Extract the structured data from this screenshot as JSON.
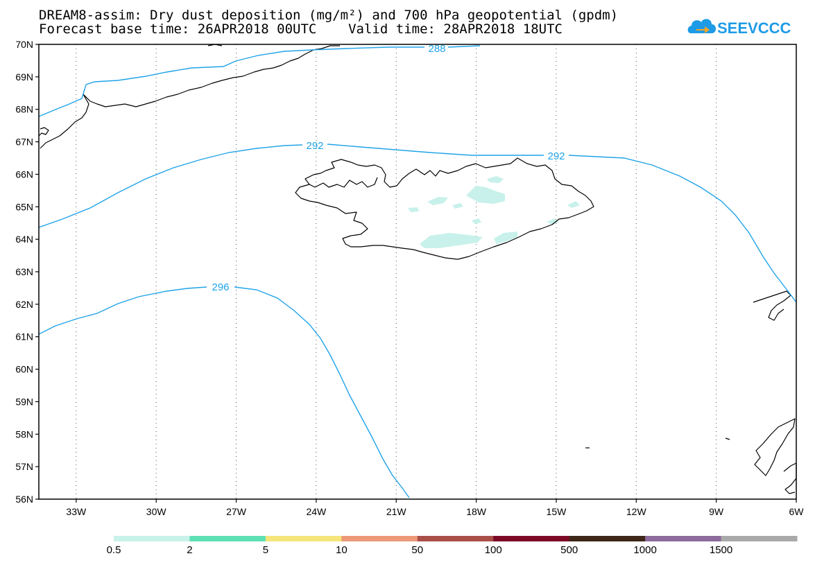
{
  "title": {
    "line1": "DREAM8-assim: Dry dust deposition (mg/m²) and 700 hPa geopotential (gpdm)",
    "line2": "Forecast base time: 26APR2018 00UTC    Valid time: 28APR2018 18UTC"
  },
  "logo": {
    "text": "SEEVCCC",
    "color": "#1e9be6",
    "accent": "#f5a623",
    "icon": "cloud-arrow-icon"
  },
  "map": {
    "lat_labels": [
      "70N",
      "69N",
      "68N",
      "67N",
      "66N",
      "65N",
      "64N",
      "63N",
      "62N",
      "61N",
      "60N",
      "59N",
      "58N",
      "57N",
      "56N"
    ],
    "lon_labels": [
      "33W",
      "30W",
      "27W",
      "24W",
      "21W",
      "18W",
      "15W",
      "12W",
      "9W",
      "6W"
    ],
    "lat_range": [
      56,
      70
    ],
    "lon_range": [
      -34.4,
      -6
    ],
    "grid": "dotted",
    "coastline_color": "#000000",
    "contour_color": "#1fa3e8",
    "contours": [
      {
        "label": "288"
      },
      {
        "label": "292"
      },
      {
        "label": "292"
      },
      {
        "label": "296"
      }
    ],
    "dust_fill_color": "#c7f1ea"
  },
  "colorbar": {
    "colors": [
      "#c8f2ea",
      "#5fe0b4",
      "#f5e57a",
      "#ec9978",
      "#a94f48",
      "#7c0a26",
      "#3e2618",
      "#8d6b9c",
      "#a9a9a9"
    ],
    "labels": [
      "0.5",
      "2",
      "5",
      "10",
      "50",
      "100",
      "500",
      "1000",
      "1500"
    ]
  }
}
